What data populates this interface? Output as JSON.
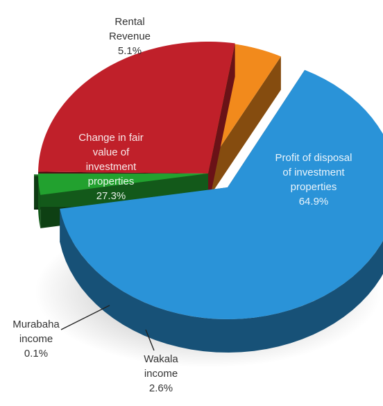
{
  "chart_data": {
    "type": "pie",
    "title": "",
    "style": "3d-exploded",
    "slices": [
      {
        "key": "profit",
        "lines": [
          "Profit of disposal",
          "of investment",
          "properties",
          "64.9%"
        ],
        "label": "Profit of disposal of investment properties",
        "value": 64.9,
        "color": "#2a93d8",
        "label_position": "inside"
      },
      {
        "key": "wakala",
        "lines": [
          "Wakala",
          "income",
          "2.6%"
        ],
        "label": "Wakala income",
        "value": 2.6,
        "color": "#22a12f",
        "label_position": "outside"
      },
      {
        "key": "murabaha",
        "lines": [
          "Murabaha",
          "income",
          "0.1%"
        ],
        "label": "Murabaha income",
        "value": 0.1,
        "color": "#1a6b22",
        "label_position": "outside"
      },
      {
        "key": "fairvalue",
        "lines": [
          "Change in fair",
          "value of",
          "investment",
          "properties",
          "27.3%"
        ],
        "label": "Change in fair value of investment properties",
        "value": 27.3,
        "color": "#c0202a",
        "label_position": "inside"
      },
      {
        "key": "rental",
        "lines": [
          "Rental",
          "Revenue",
          "5.1%"
        ],
        "label": "Rental Revenue",
        "value": 5.1,
        "color": "#f28a1c",
        "label_position": "outside"
      }
    ]
  }
}
